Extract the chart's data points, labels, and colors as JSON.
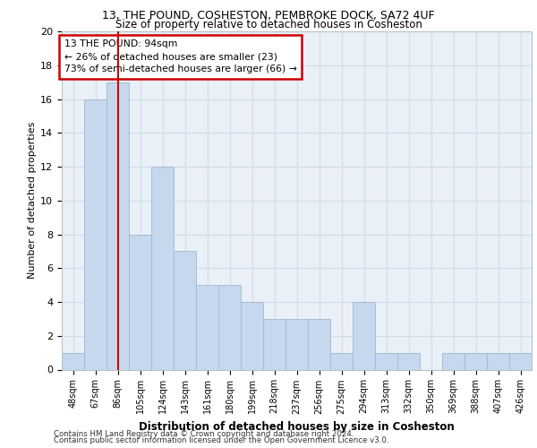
{
  "title1": "13, THE POUND, COSHESTON, PEMBROKE DOCK, SA72 4UF",
  "title2": "Size of property relative to detached houses in Cosheston",
  "xlabel": "Distribution of detached houses by size in Cosheston",
  "ylabel": "Number of detached properties",
  "categories": [
    "48sqm",
    "67sqm",
    "86sqm",
    "105sqm",
    "124sqm",
    "143sqm",
    "161sqm",
    "180sqm",
    "199sqm",
    "218sqm",
    "237sqm",
    "256sqm",
    "275sqm",
    "294sqm",
    "313sqm",
    "332sqm",
    "350sqm",
    "369sqm",
    "388sqm",
    "407sqm",
    "426sqm"
  ],
  "values": [
    1,
    16,
    17,
    8,
    12,
    7,
    5,
    5,
    4,
    3,
    3,
    3,
    1,
    4,
    1,
    1,
    0,
    1,
    1,
    1,
    1
  ],
  "bar_color": "#c5d8ed",
  "bar_edge_color": "#a0b8d0",
  "grid_color": "#d0dce8",
  "bg_color": "#eaf0f8",
  "annotation_box_color": "#cc0000",
  "vline_color": "#cc0000",
  "vline_position": 2.0,
  "annotation_text": "13 THE POUND: 94sqm\n← 26% of detached houses are smaller (23)\n73% of semi-detached houses are larger (66) →",
  "footer1": "Contains HM Land Registry data © Crown copyright and database right 2024.",
  "footer2": "Contains public sector information licensed under the Open Government Licence v3.0.",
  "ylim": [
    0,
    20
  ],
  "yticks": [
    0,
    2,
    4,
    6,
    8,
    10,
    12,
    14,
    16,
    18,
    20
  ]
}
